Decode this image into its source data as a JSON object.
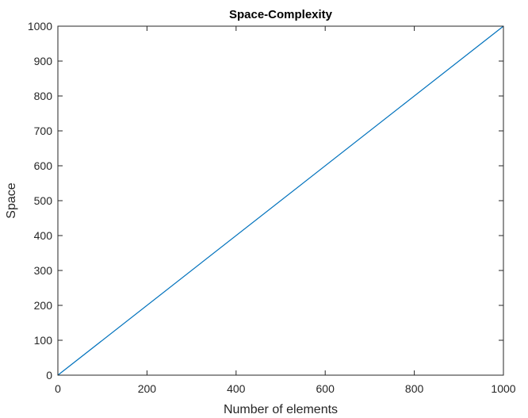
{
  "chart_data": {
    "type": "line",
    "title": "Space-Complexity",
    "xlabel": "Number of elements",
    "ylabel": "Space",
    "xlim": [
      0,
      1000
    ],
    "ylim": [
      0,
      1000
    ],
    "xticks": [
      0,
      200,
      400,
      600,
      800,
      1000
    ],
    "yticks": [
      0,
      100,
      200,
      300,
      400,
      500,
      600,
      700,
      800,
      900,
      1000
    ],
    "grid": false,
    "series": [
      {
        "x": [
          0,
          1000
        ],
        "y": [
          0,
          1000
        ],
        "color": "#0072BD"
      }
    ]
  }
}
